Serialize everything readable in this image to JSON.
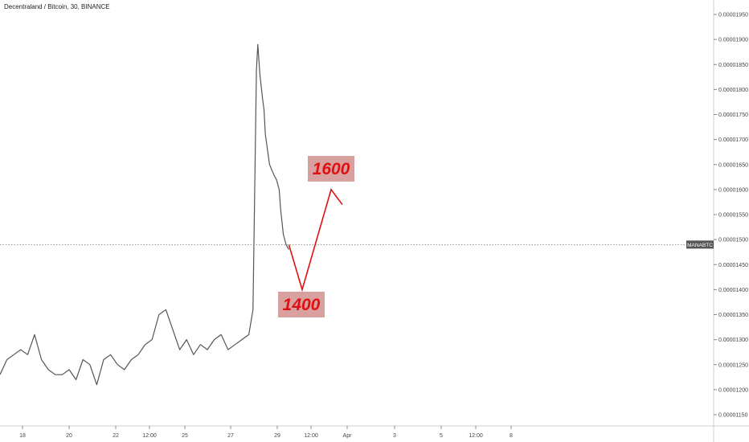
{
  "chart_data": {
    "type": "line",
    "title": "Decentraland / Bitcoin, 30, BINANCE",
    "xlabel": "",
    "ylabel": "",
    "x_ticks": [
      "18",
      "20",
      "22",
      "12:00",
      "25",
      "27",
      "29",
      "12:00",
      "Apr",
      "3",
      "5",
      "12:00",
      "8"
    ],
    "y_ticks": [
      "0.00001950",
      "0.00001900",
      "0.00001850",
      "0.00001800",
      "0.00001750",
      "0.00001700",
      "0.00001650",
      "0.00001600",
      "0.00001550",
      "0.00001500",
      "0.00001450",
      "0.00001400",
      "0.00001350",
      "0.00001300",
      "0.00001250",
      "0.00001200",
      "0.00001150"
    ],
    "ylim": [
      1.13e-05,
      1.97e-05
    ],
    "series": [
      {
        "values": [
          [
            0.0,
            1.23e-05
          ],
          [
            0.5,
            1.26e-05
          ],
          [
            1.0,
            1.27e-05
          ],
          [
            1.5,
            1.28e-05
          ],
          [
            2.0,
            1.27e-05
          ],
          [
            2.5,
            1.31e-05
          ],
          [
            3.0,
            1.26e-05
          ],
          [
            3.5,
            1.24e-05
          ],
          [
            4.0,
            1.23e-05
          ],
          [
            4.5,
            1.23e-05
          ],
          [
            5.0,
            1.24e-05
          ],
          [
            5.5,
            1.22e-05
          ],
          [
            6.0,
            1.26e-05
          ],
          [
            6.5,
            1.25e-05
          ],
          [
            7.0,
            1.21e-05
          ],
          [
            7.5,
            1.26e-05
          ],
          [
            8.0,
            1.27e-05
          ],
          [
            8.5,
            1.25e-05
          ],
          [
            9.0,
            1.24e-05
          ],
          [
            9.5,
            1.26e-05
          ],
          [
            10.0,
            1.27e-05
          ],
          [
            10.5,
            1.29e-05
          ],
          [
            11.0,
            1.3e-05
          ],
          [
            11.5,
            1.35e-05
          ],
          [
            12.0,
            1.36e-05
          ],
          [
            12.5,
            1.32e-05
          ],
          [
            13.0,
            1.28e-05
          ],
          [
            13.5,
            1.3e-05
          ],
          [
            14.0,
            1.27e-05
          ],
          [
            14.5,
            1.29e-05
          ],
          [
            15.0,
            1.28e-05
          ],
          [
            15.5,
            1.3e-05
          ],
          [
            16.0,
            1.31e-05
          ],
          [
            16.5,
            1.28e-05
          ],
          [
            17.0,
            1.29e-05
          ],
          [
            17.5,
            1.3e-05
          ],
          [
            18.0,
            1.31e-05
          ],
          [
            18.3,
            1.36e-05
          ],
          [
            18.55,
            1.84e-05
          ],
          [
            18.65,
            1.89e-05
          ],
          [
            18.8,
            1.83e-05
          ],
          [
            19.0,
            1.78e-05
          ],
          [
            19.1,
            1.76e-05
          ],
          [
            19.2,
            1.71e-05
          ],
          [
            19.5,
            1.65e-05
          ],
          [
            19.8,
            1.63e-05
          ],
          [
            20.0,
            1.62e-05
          ],
          [
            20.2,
            1.6e-05
          ],
          [
            20.3,
            1.56e-05
          ],
          [
            20.5,
            1.51e-05
          ],
          [
            20.7,
            1.49e-05
          ],
          [
            20.9,
            1.48e-05
          ]
        ]
      }
    ],
    "current_price_label": "MANABTC",
    "annotations": [
      {
        "text": "1400",
        "x": 22.0,
        "y": 1.4e-05
      },
      {
        "text": "1600",
        "x": 24.0,
        "y": 1.6e-05
      }
    ],
    "grid": false
  },
  "colors": {
    "price_line": "#555555",
    "projection": "#e01010",
    "label_box": "#d9a0a0",
    "label_text": "#e01010",
    "axis_badge": "#555555"
  }
}
